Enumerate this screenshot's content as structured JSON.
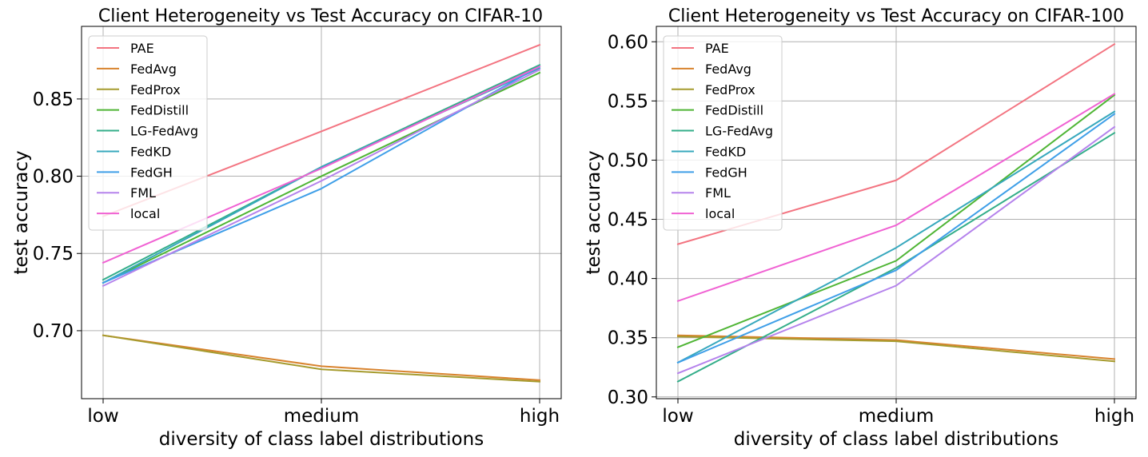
{
  "chart_data": [
    {
      "type": "line",
      "title": "Client Heterogeneity vs Test Accuracy on CIFAR-10",
      "xlabel": "diversity of class label distributions",
      "ylabel": "test accuracy",
      "categories": [
        "low",
        "medium",
        "high"
      ],
      "ylim": [
        0.656,
        0.897
      ],
      "yticks": [
        0.7,
        0.75,
        0.8,
        0.85
      ],
      "ytick_labels": [
        "0.70",
        "0.75",
        "0.80",
        "0.85"
      ],
      "grid": true,
      "legend": "upper-left",
      "series": [
        {
          "name": "PAE",
          "color": "#f37481",
          "values": [
            0.774,
            0.829,
            0.885
          ]
        },
        {
          "name": "FedAvg",
          "color": "#d8832e",
          "values": [
            0.697,
            0.677,
            0.668
          ]
        },
        {
          "name": "FedProx",
          "color": "#a69b2e",
          "values": [
            0.697,
            0.675,
            0.667
          ]
        },
        {
          "name": "FedDistill",
          "color": "#4fb535",
          "values": [
            0.731,
            0.8,
            0.867
          ]
        },
        {
          "name": "LG-FedAvg",
          "color": "#34ae8a",
          "values": [
            0.733,
            0.806,
            0.872
          ]
        },
        {
          "name": "FedKD",
          "color": "#37a8bd",
          "values": [
            0.731,
            0.806,
            0.87
          ]
        },
        {
          "name": "FedGH",
          "color": "#3f9fe8",
          "values": [
            0.731,
            0.792,
            0.871
          ]
        },
        {
          "name": "FML",
          "color": "#b583ec",
          "values": [
            0.729,
            0.797,
            0.869
          ]
        },
        {
          "name": "local",
          "color": "#f062d3",
          "values": [
            0.744,
            0.805,
            0.871
          ]
        }
      ]
    },
    {
      "type": "line",
      "title": "Client Heterogeneity vs Test Accuracy on CIFAR-100",
      "xlabel": "diversity of class label distributions",
      "ylabel": "test accuracy",
      "categories": [
        "low",
        "medium",
        "high"
      ],
      "ylim": [
        0.2985,
        0.613
      ],
      "yticks": [
        0.3,
        0.35,
        0.4,
        0.45,
        0.5,
        0.55,
        0.6
      ],
      "ytick_labels": [
        "0.30",
        "0.35",
        "0.40",
        "0.45",
        "0.50",
        "0.55",
        "0.60"
      ],
      "grid": true,
      "legend": "upper-left",
      "series": [
        {
          "name": "PAE",
          "color": "#f37481",
          "values": [
            0.429,
            0.483,
            0.598
          ]
        },
        {
          "name": "FedAvg",
          "color": "#d8832e",
          "values": [
            0.352,
            0.348,
            0.332
          ]
        },
        {
          "name": "FedProx",
          "color": "#a69b2e",
          "values": [
            0.351,
            0.347,
            0.33
          ]
        },
        {
          "name": "FedDistill",
          "color": "#4fb535",
          "values": [
            0.342,
            0.415,
            0.555
          ]
        },
        {
          "name": "LG-FedAvg",
          "color": "#34ae8a",
          "values": [
            0.313,
            0.409,
            0.523
          ]
        },
        {
          "name": "FedKD",
          "color": "#37a8bd",
          "values": [
            0.329,
            0.426,
            0.541
          ]
        },
        {
          "name": "FedGH",
          "color": "#3f9fe8",
          "values": [
            0.329,
            0.407,
            0.539
          ]
        },
        {
          "name": "FML",
          "color": "#b583ec",
          "values": [
            0.32,
            0.394,
            0.528
          ]
        },
        {
          "name": "local",
          "color": "#f062d3",
          "values": [
            0.381,
            0.445,
            0.556
          ]
        }
      ]
    }
  ]
}
